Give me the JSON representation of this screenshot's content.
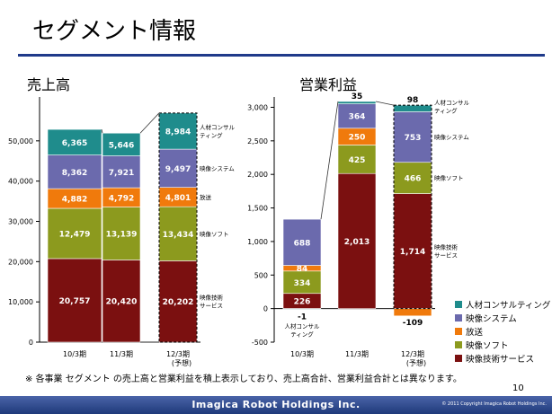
{
  "title": "セグメント情報",
  "note": "※ 各事業 セグメント の売上高と営業利益を積上表示しており、売上高合計、営業利益合計とは異なります。",
  "page_number": "10",
  "footer": {
    "company": "Imagica Robot Holdings Inc.",
    "copyright": "© 2011 Copyright Imagica Robot Holdings Inc."
  },
  "colors": {
    "映像技術サービス": "#7b1010",
    "映像ソフト": "#8c9a1e",
    "放送": "#f07a0c",
    "映像システム": "#6b6aad",
    "人材コンサルティング": "#1f8c8c"
  },
  "legend": [
    {
      "name": "人材コンサルティング",
      "color": "#1f8c8c"
    },
    {
      "name": "映像システム",
      "color": "#6b6aad"
    },
    {
      "name": "放送",
      "color": "#f07a0c"
    },
    {
      "name": "映像ソフト",
      "color": "#8c9a1e"
    },
    {
      "name": "映像技術サービス",
      "color": "#7b1010"
    }
  ],
  "chart_data": [
    {
      "type": "bar",
      "subtitle": "売上高",
      "categories": [
        "10/3期",
        "11/3期",
        "12/3期"
      ],
      "category_notes": [
        "",
        "",
        "(予想)"
      ],
      "ylim": [
        0,
        60000
      ],
      "yticks": [
        0,
        10000,
        20000,
        30000,
        40000,
        50000
      ],
      "ytick_labels": [
        "0",
        "10,000",
        "20,000",
        "30,000",
        "40,000",
        "50,000"
      ],
      "stacked": true,
      "forecast_dashed": [
        false,
        false,
        true
      ],
      "series": [
        {
          "name": "映像技術サービス",
          "values": [
            20757,
            20420,
            20202
          ],
          "labels": [
            "20,757",
            "20,420",
            "20,202"
          ]
        },
        {
          "name": "映像ソフト",
          "values": [
            12479,
            13139,
            13434
          ],
          "labels": [
            "12,479",
            "13,139",
            "13,434"
          ]
        },
        {
          "name": "放送",
          "values": [
            4882,
            4792,
            4801
          ],
          "labels": [
            "4,882",
            "4,792",
            "4,801"
          ]
        },
        {
          "name": "映像システム",
          "values": [
            8362,
            7921,
            9497
          ],
          "labels": [
            "8,362",
            "7,921",
            "9,497"
          ]
        },
        {
          "name": "人材コンサルティング",
          "values": [
            6365,
            5646,
            8984
          ],
          "labels": [
            "6,365",
            "5,646",
            "8,984"
          ]
        }
      ],
      "segment_labels": [
        {
          "segment": "人材コンサルティング",
          "lines": [
            "人材コンサル",
            "ティング"
          ]
        },
        {
          "segment": "映像システム",
          "lines": [
            "映像システム"
          ]
        },
        {
          "segment": "放送",
          "lines": [
            "放送"
          ]
        },
        {
          "segment": "映像ソフト",
          "lines": [
            "映像ソフト"
          ]
        },
        {
          "segment": "映像技術サービス",
          "lines": [
            "映像技術",
            "サービス"
          ]
        }
      ]
    },
    {
      "type": "bar",
      "subtitle": "営業利益",
      "categories": [
        "10/3期",
        "11/3期",
        "12/3期"
      ],
      "category_notes": [
        "",
        "",
        "(予想)"
      ],
      "ylim": [
        -500,
        3100
      ],
      "yticks": [
        -500,
        0,
        500,
        1000,
        1500,
        2000,
        2500,
        3000
      ],
      "ytick_labels": [
        "-500",
        "0",
        "500",
        "1,000",
        "1,500",
        "2,000",
        "2,500",
        "3,000"
      ],
      "stacked": true,
      "forecast_dashed": [
        false,
        false,
        true
      ],
      "series": [
        {
          "name": "映像技術サービス",
          "values": [
            226,
            2013,
            1714
          ],
          "labels": [
            "226",
            "2,013",
            "1,714"
          ]
        },
        {
          "name": "映像ソフト",
          "values": [
            334,
            425,
            466
          ],
          "labels": [
            "334",
            "425",
            "466"
          ]
        },
        {
          "name": "放送",
          "values": [
            84,
            250,
            -109
          ],
          "labels": [
            "84",
            "250",
            "-109"
          ]
        },
        {
          "name": "映像システム",
          "values": [
            688,
            364,
            753
          ],
          "labels": [
            "688",
            "364",
            "753"
          ]
        },
        {
          "name": "人材コンサルティング",
          "values": [
            -1,
            35,
            98
          ],
          "labels": [
            "-1",
            "35",
            "98"
          ]
        }
      ],
      "annotations": [
        {
          "category": "10/3期",
          "lines": [
            "人材コンサル",
            "ティング"
          ]
        }
      ],
      "segment_labels": [
        {
          "segment": "人材コンサルティング",
          "lines": [
            "人材コンサル",
            "ティング"
          ]
        },
        {
          "segment": "映像システム",
          "lines": [
            "映像システム"
          ]
        },
        {
          "segment": "映像ソフト",
          "lines": [
            "映像ソフト"
          ]
        },
        {
          "segment": "映像技術サービス",
          "lines": [
            "映像技術",
            "サービス"
          ]
        }
      ]
    }
  ]
}
